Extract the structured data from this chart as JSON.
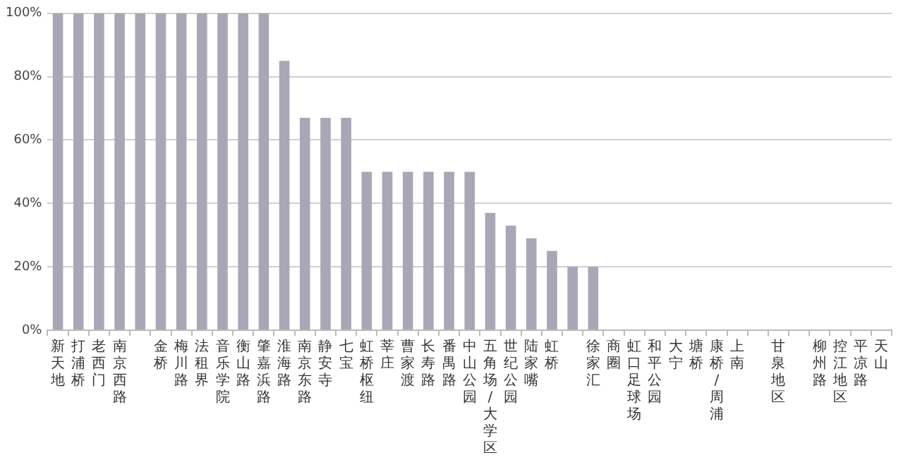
{
  "chart_data": {
    "type": "bar",
    "categories": [
      "新天地",
      "打浦桥",
      "老西门",
      "南京西路",
      null,
      "金桥",
      "梅川路",
      "法租界",
      "音乐学院",
      "衡山路",
      "肇嘉浜路",
      "淮海路",
      "南京东路",
      "静安寺",
      "七宝",
      "虹桥枢纽",
      "莘庄",
      "曹家渡",
      "长寿路",
      "番禺路",
      "中山公园",
      "五角场/大学区",
      "世纪公园",
      "陆家嘴",
      "虹桥",
      null,
      "徐家汇",
      "商圈",
      "虹口足球场",
      "和平公园",
      "大宁",
      "塘桥",
      "康桥/周浦",
      "上南",
      null,
      "甘泉地区",
      null,
      "柳州路",
      "控江地区",
      "平凉路",
      "天山"
    ],
    "values": [
      100,
      100,
      100,
      100,
      100,
      100,
      100,
      100,
      100,
      100,
      100,
      85,
      67,
      67,
      67,
      50,
      50,
      50,
      50,
      50,
      50,
      37,
      33,
      29,
      25,
      20,
      20,
      0,
      0,
      0,
      0,
      0,
      0,
      0,
      0,
      0,
      0,
      0,
      0,
      0,
      0
    ],
    "color": "#a9a7b5",
    "ylim": [
      0,
      100
    ],
    "yticks": [
      {
        "value": 0,
        "label": "0%"
      },
      {
        "value": 20,
        "label": "20%"
      },
      {
        "value": 40,
        "label": "40%"
      },
      {
        "value": 60,
        "label": "60%"
      },
      {
        "value": 80,
        "label": "80%"
      },
      {
        "value": 100,
        "label": "100%"
      }
    ],
    "grid": "y",
    "legend": false
  }
}
